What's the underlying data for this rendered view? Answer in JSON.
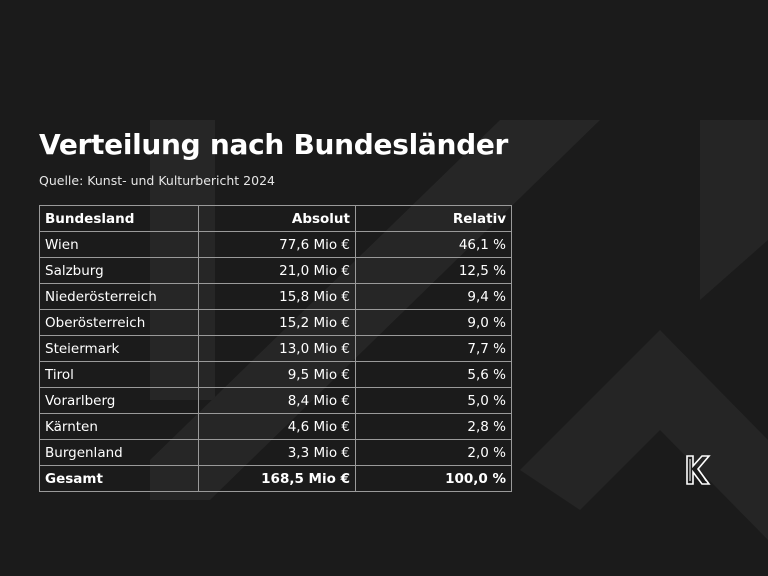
{
  "title": "Verteilung nach Bundesländer",
  "source": "Quelle: Kunst- und Kulturbericht 2024",
  "table": {
    "header": [
      "Bundesland",
      "Absolut",
      "Relativ"
    ],
    "rows": [
      [
        "Wien",
        "77,6 Mio €",
        "46,1 %"
      ],
      [
        "Salzburg",
        "21,0 Mio €",
        "12,5 %"
      ],
      [
        "Niederösterreich",
        "15,8 Mio €",
        "9,4 %"
      ],
      [
        "Oberösterreich",
        "15,2 Mio €",
        "9,0 %"
      ],
      [
        "Steiermark",
        "13,0 Mio €",
        "7,7 %"
      ],
      [
        "Tirol",
        "9,5 Mio €",
        "5,6 %"
      ],
      [
        "Vorarlberg",
        "8,4 Mio €",
        "5,0 %"
      ],
      [
        "Kärnten",
        "4,6 Mio €",
        "2,8 %"
      ],
      [
        "Burgenland",
        "3,3 Mio €",
        "2,0 %"
      ]
    ],
    "total": [
      "Gesamt",
      "168,5 Mio €",
      "100,0 %"
    ]
  }
}
